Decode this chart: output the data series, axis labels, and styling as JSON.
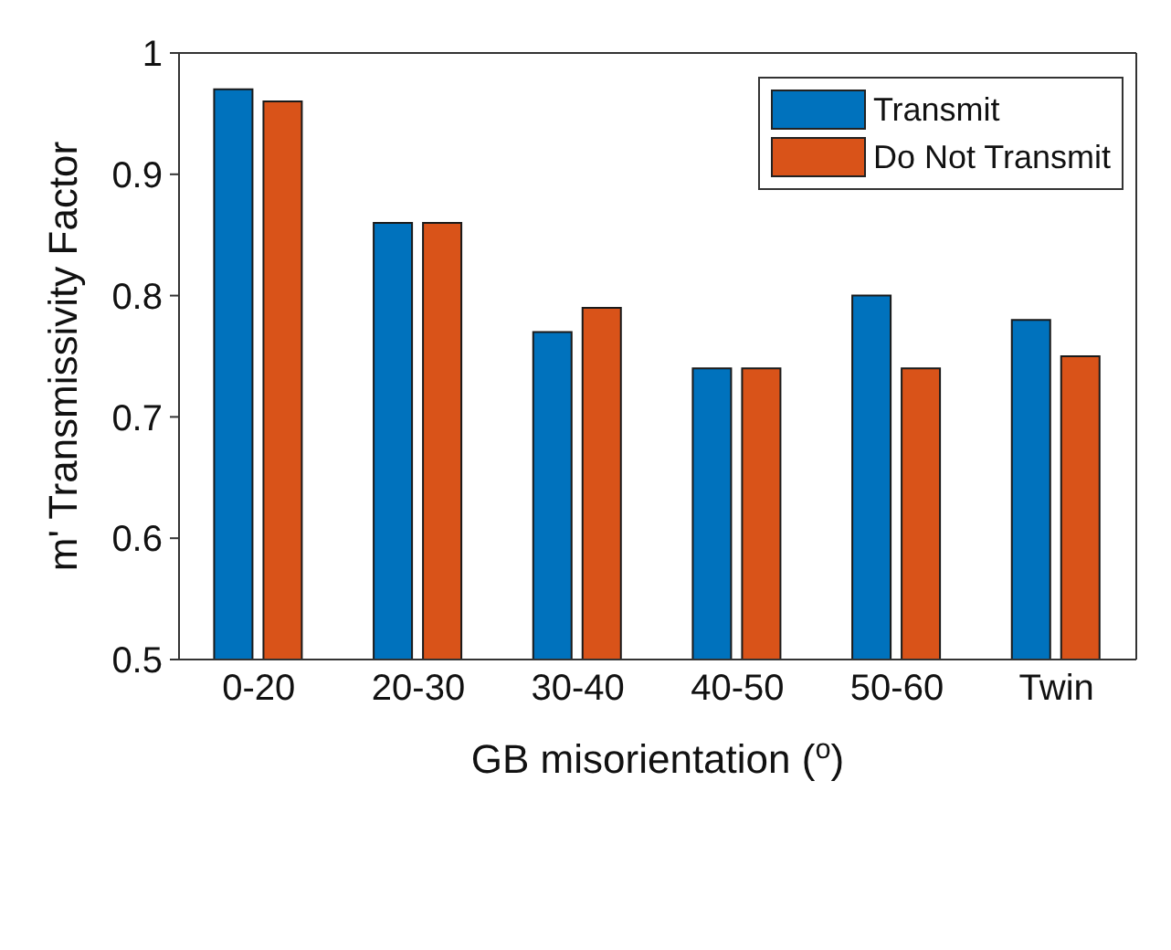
{
  "chart_data": {
    "type": "bar",
    "xlabel": "GB misorientation ($^{o}$)",
    "ylabel": "m' Transmissivity Factor",
    "categories": [
      "0-20",
      "20-30",
      "30-40",
      "40-50",
      "50-60",
      "Twin"
    ],
    "series": [
      {
        "name": "Transmit",
        "color": "#0072bd",
        "values": [
          0.97,
          0.86,
          0.77,
          0.74,
          0.8,
          0.78
        ]
      },
      {
        "name": "Do Not Transmit",
        "color": "#d95319",
        "values": [
          0.96,
          0.86,
          0.79,
          0.74,
          0.74,
          0.75
        ]
      }
    ],
    "ylim": [
      0.5,
      1
    ],
    "yticks": [
      0.5,
      0.6,
      0.7,
      0.8,
      0.9,
      1
    ],
    "grid": false,
    "legend": "top right"
  }
}
